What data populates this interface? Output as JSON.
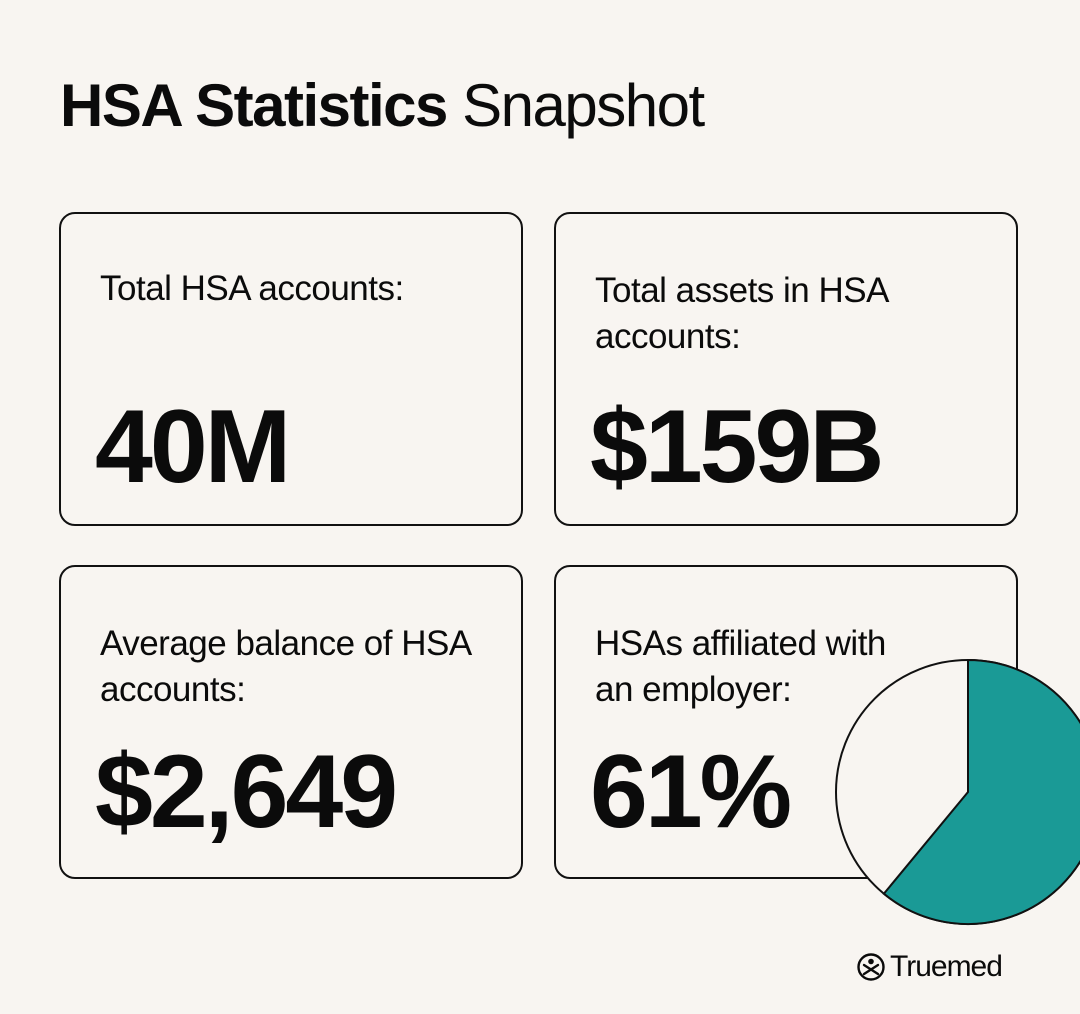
{
  "header": {
    "title_bold": "HSA Statistics",
    "title_light": "Snapshot"
  },
  "cards": [
    {
      "label": "Total HSA accounts:",
      "value": "40M"
    },
    {
      "label": "Total assets in HSA accounts:",
      "value": "$159B"
    },
    {
      "label": "Average balance of HSA accounts:",
      "value": "$2,649"
    },
    {
      "label": "HSAs affiliated with an employer:",
      "value": "61%"
    }
  ],
  "chart_data": {
    "type": "pie",
    "slices": [
      {
        "value": 61,
        "color": "#1a9a96"
      },
      {
        "value": 39,
        "color": "#f8f5f1"
      }
    ]
  },
  "brand": {
    "name": "Truemed",
    "icon": "truemed-logo-icon"
  },
  "colors": {
    "background": "#f8f5f1",
    "accent": "#1a9a96",
    "text": "#0b0b0b"
  }
}
